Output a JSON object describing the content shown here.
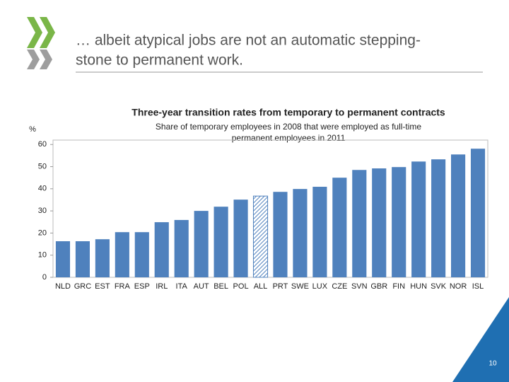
{
  "slide": {
    "title_lines": [
      "… albeit atypical jobs are not an automatic stepping-",
      "stone to permanent work."
    ],
    "page_number": "10"
  },
  "chart_data": {
    "type": "bar",
    "title": "Three-year transition rates from temporary to permanent contracts",
    "subtitle": [
      "Share of temporary employees in 2008 that were employed as full-time",
      "permanent employees in 2011"
    ],
    "y_label": "%",
    "categories": [
      "NLD",
      "GRC",
      "EST",
      "FRA",
      "ESP",
      "IRL",
      "ITA",
      "AUT",
      "BEL",
      "POL",
      "ALL",
      "PRT",
      "SWE",
      "LUX",
      "CZE",
      "SVN",
      "GBR",
      "FIN",
      "HUN",
      "SVK",
      "NOR",
      "ISL"
    ],
    "values": [
      16.3,
      16.3,
      17.2,
      20.4,
      20.4,
      24.9,
      25.9,
      30,
      31.9,
      35.1,
      36.7,
      38.6,
      39.9,
      40.9,
      45,
      48.5,
      49.2,
      49.8,
      52.3,
      53.3,
      55.5,
      58.1
    ],
    "color": "#4f81bd",
    "highlight": "ALL",
    "ylim": [
      0,
      62
    ],
    "yticks": [
      0,
      10,
      20,
      30,
      40,
      50,
      60
    ],
    "grid": false
  }
}
